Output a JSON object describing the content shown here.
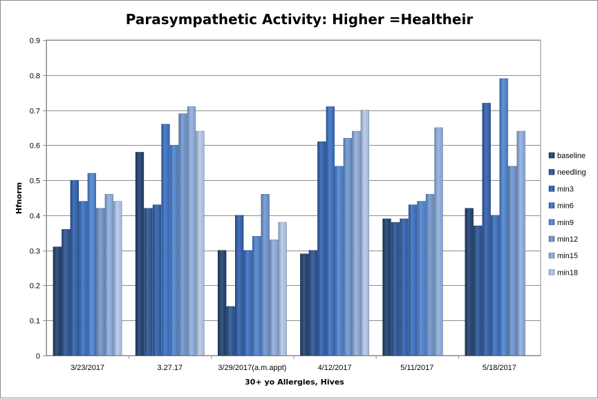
{
  "chart_data": {
    "type": "bar",
    "title": "Parasympathetic Activity: Higher =Healtheir",
    "xlabel": "30+ yo Allergies, Hives",
    "ylabel": "Hfnorm",
    "ylim": [
      0,
      0.9
    ],
    "yticks": [
      "0",
      "0.1",
      "0.2",
      "0.3",
      "0.4",
      "0.5",
      "0.6",
      "0.7",
      "0.8",
      "0.9"
    ],
    "grid": true,
    "legend_position": "right",
    "categories": [
      "3/23/2017",
      "3.27.17",
      "3/29/2017(a.m.appt)",
      "4/12/2017",
      "5/11/2017",
      "5/18/2017"
    ],
    "series": [
      {
        "name": "baseline",
        "color": "#1f3f6e",
        "values": [
          0.31,
          0.58,
          0.3,
          0.29,
          0.39,
          0.42
        ]
      },
      {
        "name": "needling",
        "color": "#2a5496",
        "values": [
          0.36,
          0.42,
          0.14,
          0.3,
          0.38,
          0.37
        ]
      },
      {
        "name": "min3",
        "color": "#2f60ae",
        "values": [
          0.5,
          0.43,
          0.4,
          0.61,
          0.39,
          0.72
        ]
      },
      {
        "name": "min6",
        "color": "#3a70c4",
        "values": [
          0.44,
          0.66,
          0.3,
          0.71,
          0.43,
          0.4
        ]
      },
      {
        "name": "min9",
        "color": "#4e84d2",
        "values": [
          0.52,
          0.6,
          0.34,
          0.54,
          0.44,
          0.79
        ]
      },
      {
        "name": "min12",
        "color": "#6e97d2",
        "values": [
          0.42,
          0.69,
          0.46,
          0.62,
          0.46,
          0.54
        ]
      },
      {
        "name": "min15",
        "color": "#8faee0",
        "values": [
          0.46,
          0.71,
          0.33,
          0.64,
          0.65,
          0.64
        ]
      },
      {
        "name": "min18",
        "color": "#b3c8ea",
        "values": [
          0.44,
          0.64,
          0.38,
          0.7,
          null,
          null
        ]
      }
    ]
  }
}
